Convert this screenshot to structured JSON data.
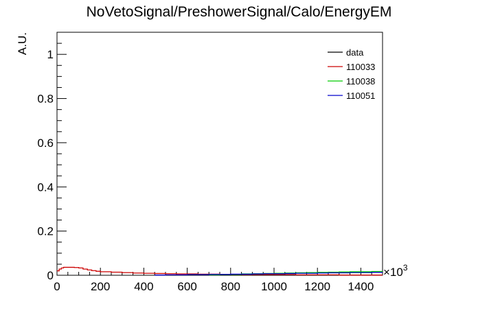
{
  "chart_data": {
    "type": "line",
    "title": "NoVetoSignal/PreshowerSignal/Calo/EnergyEM",
    "xlabel": "",
    "ylabel": "A.U.",
    "x_multiplier": "×10",
    "x_multiplier_exp": "3",
    "xlim": [
      0,
      1500
    ],
    "ylim": [
      0,
      1.1
    ],
    "x_ticks": [
      0,
      200,
      400,
      600,
      800,
      1000,
      1200,
      1400
    ],
    "y_ticks": [
      0,
      0.2,
      0.4,
      0.6,
      0.8,
      1
    ],
    "x_tick_labels": [
      "0",
      "200",
      "400",
      "600",
      "800",
      "1000",
      "1200",
      "1400"
    ],
    "y_tick_labels": [
      "0",
      "0.2",
      "0.4",
      "0.6",
      "0.8",
      "1"
    ],
    "grid": false,
    "legend_position": "top-right",
    "series": [
      {
        "name": "data",
        "color": "#000000",
        "x": [],
        "y": []
      },
      {
        "name": "110033",
        "color": "#cc0000",
        "x": [
          0,
          10,
          20,
          30,
          40,
          60,
          80,
          100,
          120,
          140,
          160,
          180,
          200,
          250,
          300,
          350,
          400,
          450,
          500,
          550,
          600,
          650,
          700,
          750,
          800,
          850,
          900,
          950,
          1000,
          1050,
          1100,
          1150,
          1200,
          1250,
          1300,
          1350,
          1400,
          1450,
          1500
        ],
        "y": [
          0.02,
          0.028,
          0.033,
          0.036,
          0.036,
          0.036,
          0.035,
          0.033,
          0.028,
          0.024,
          0.021,
          0.018,
          0.016,
          0.014,
          0.012,
          0.01,
          0.009,
          0.008,
          0.007,
          0.006,
          0.006,
          0.005,
          0.005,
          0.004,
          0.004,
          0.004,
          0.003,
          0.003,
          0.003,
          0.003,
          0.002,
          0.002,
          0.002,
          0.002,
          0.001,
          0.001,
          0.001,
          0.001,
          0.001
        ]
      },
      {
        "name": "110038",
        "color": "#00cc00",
        "x": [
          700,
          750,
          800,
          850,
          900,
          950,
          1000,
          1050,
          1100,
          1150,
          1200,
          1250,
          1300,
          1350,
          1400,
          1450,
          1500
        ],
        "y": [
          0.002,
          0.003,
          0.004,
          0.006,
          0.007,
          0.008,
          0.009,
          0.01,
          0.011,
          0.012,
          0.013,
          0.014,
          0.015,
          0.016,
          0.016,
          0.017,
          0.017
        ]
      },
      {
        "name": "110051",
        "color": "#0000cc",
        "x": [
          450,
          500,
          550,
          600,
          650,
          700,
          750,
          800,
          850,
          900,
          950,
          1000,
          1050,
          1100,
          1150,
          1200,
          1250,
          1300,
          1350,
          1400,
          1450,
          1500
        ],
        "y": [
          0.001,
          0.002,
          0.002,
          0.003,
          0.003,
          0.004,
          0.004,
          0.005,
          0.005,
          0.006,
          0.007,
          0.007,
          0.008,
          0.009,
          0.009,
          0.01,
          0.011,
          0.011,
          0.012,
          0.012,
          0.013,
          0.013
        ]
      }
    ]
  }
}
